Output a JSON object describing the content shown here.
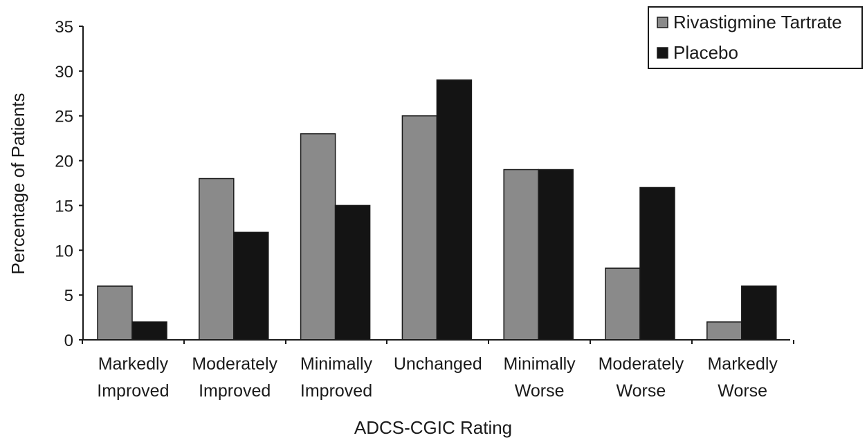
{
  "chart_data": {
    "type": "bar",
    "title": "",
    "xlabel": "ADCS-CGIC Rating",
    "ylabel": "Percentage of Patients",
    "ylim": [
      0,
      35
    ],
    "yticks": [
      0,
      5,
      10,
      15,
      20,
      25,
      30,
      35
    ],
    "categories": [
      [
        "Markedly",
        "Improved"
      ],
      [
        "Moderately",
        "Improved"
      ],
      [
        "Minimally",
        "Improved"
      ],
      [
        "Unchanged"
      ],
      [
        "Minimally",
        "Worse"
      ],
      [
        "Moderately",
        "Worse"
      ],
      [
        "Markedly",
        "Worse"
      ]
    ],
    "series": [
      {
        "name": "Rivastigmine Tartrate",
        "color": "#8a8a8a",
        "values": [
          6,
          18,
          23,
          25,
          19,
          8,
          2
        ]
      },
      {
        "name": "Placebo",
        "color": "#141414",
        "values": [
          2,
          12,
          15,
          29,
          19,
          17,
          6
        ]
      }
    ],
    "grid": false,
    "legend_position": "top-right"
  }
}
